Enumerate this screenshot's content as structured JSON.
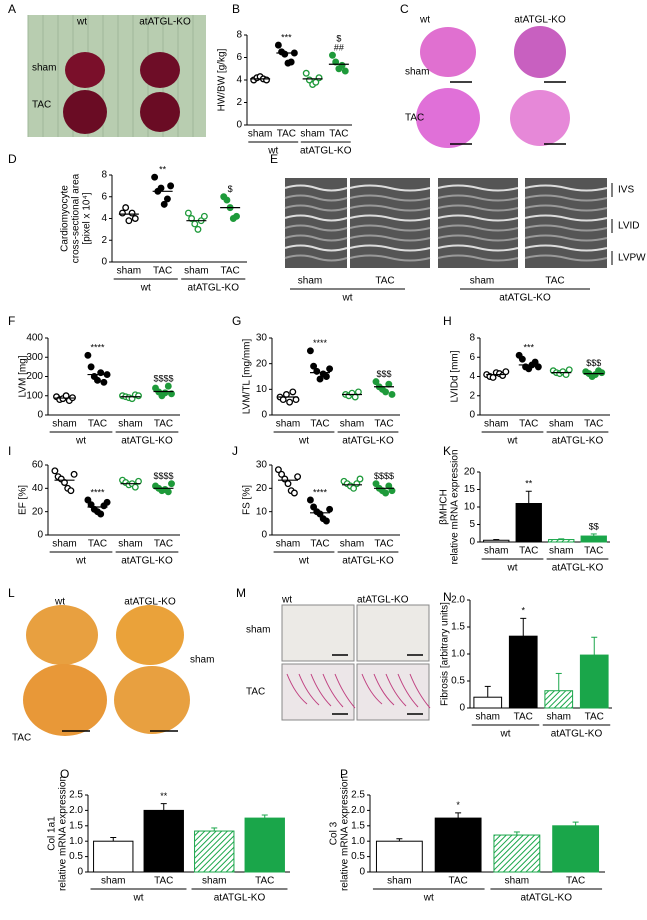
{
  "chart_data": [
    {
      "type": "dot",
      "panel": "B",
      "ylabel": "HW/BW [g/kg]",
      "categories": [
        "sham",
        "TAC",
        "sham",
        "TAC"
      ],
      "group_labels": [
        "wt",
        "atATGL-KO"
      ],
      "ylim": [
        0,
        8
      ],
      "yticks": [
        0,
        2,
        4,
        6,
        8
      ],
      "colors": [
        "#000000",
        "#000000",
        "#1e9a3a",
        "#1e9a3a"
      ],
      "filled": [
        false,
        true,
        false,
        true
      ],
      "points": [
        [
          4.0,
          4.2,
          4.3,
          4.1,
          4.0
        ],
        [
          7.1,
          6.5,
          6.3,
          5.5,
          5.6,
          6.4
        ],
        [
          4.6,
          4.0,
          3.6,
          3.8,
          4.2
        ],
        [
          6.2,
          5.6,
          5.0,
          5.3,
          4.8
        ]
      ],
      "means": [
        4.1,
        6.4,
        4.1,
        5.4
      ],
      "annotations": [
        null,
        [
          "***"
        ],
        null,
        [
          "$",
          "##"
        ]
      ]
    },
    {
      "type": "dot",
      "panel": "D",
      "ylabel": [
        "Cardiomyocyte",
        "cross-sectional area",
        "[pixel x 10⁴]"
      ],
      "categories": [
        "sham",
        "TAC",
        "sham",
        "TAC"
      ],
      "group_labels": [
        "wt",
        "atATGL-KO"
      ],
      "ylim": [
        0,
        8
      ],
      "yticks": [
        0,
        2,
        4,
        6,
        8
      ],
      "colors": [
        "#000000",
        "#000000",
        "#1e9a3a",
        "#1e9a3a"
      ],
      "filled": [
        false,
        true,
        false,
        true
      ],
      "points": [
        [
          4.5,
          5.0,
          3.8,
          4.5,
          4.0
        ],
        [
          7.8,
          6.5,
          6.8,
          5.3,
          5.8,
          7.0
        ],
        [
          4.5,
          4.0,
          3.5,
          3.0,
          3.8,
          4.2
        ],
        [
          6.0,
          5.7,
          5.0,
          4.0,
          4.2
        ]
      ],
      "means": [
        4.4,
        6.5,
        3.8,
        5.0
      ],
      "annotations": [
        null,
        [
          "**"
        ],
        null,
        [
          "$"
        ]
      ]
    },
    {
      "type": "dot",
      "panel": "F",
      "ylabel": "LVM [mg]",
      "categories": [
        "sham",
        "TAC",
        "sham",
        "TAC"
      ],
      "group_labels": [
        "wt",
        "atATGL-KO"
      ],
      "ylim": [
        0,
        400
      ],
      "yticks": [
        0,
        100,
        200,
        300,
        400
      ],
      "colors": [
        "#000000",
        "#000000",
        "#1e9a3a",
        "#1e9a3a"
      ],
      "filled": [
        false,
        true,
        false,
        true
      ],
      "points": [
        [
          95,
          80,
          85,
          100,
          75,
          90
        ],
        [
          310,
          250,
          200,
          180,
          220,
          170,
          210
        ],
        [
          100,
          95,
          90,
          85,
          105,
          100
        ],
        [
          140,
          120,
          100,
          115,
          150,
          110
        ]
      ],
      "means": [
        88,
        210,
        95,
        122
      ],
      "annotations": [
        null,
        [
          "****"
        ],
        null,
        [
          "$$$$"
        ]
      ]
    },
    {
      "type": "dot",
      "panel": "G",
      "ylabel": "LVM/TL [mg/mm]",
      "categories": [
        "sham",
        "TAC",
        "sham",
        "TAC"
      ],
      "group_labels": [
        "wt",
        "atATGL-KO"
      ],
      "ylim": [
        0,
        30
      ],
      "yticks": [
        0,
        10,
        20,
        30
      ],
      "colors": [
        "#000000",
        "#000000",
        "#1e9a3a",
        "#1e9a3a"
      ],
      "filled": [
        false,
        true,
        false,
        true
      ],
      "points": [
        [
          7,
          6,
          8,
          5,
          9,
          6
        ],
        [
          25,
          19,
          17,
          14,
          16,
          15,
          18
        ],
        [
          8,
          7.5,
          8.5,
          7,
          9
        ],
        [
          13,
          11,
          10,
          9,
          12,
          8
        ]
      ],
      "means": [
        7,
        16.5,
        8,
        11
      ],
      "annotations": [
        null,
        [
          "****"
        ],
        null,
        [
          "$$$"
        ]
      ]
    },
    {
      "type": "dot",
      "panel": "H",
      "ylabel": "LVIDd [mm]",
      "categories": [
        "sham",
        "TAC",
        "sham",
        "TAC"
      ],
      "group_labels": [
        "wt",
        "atATGL-KO"
      ],
      "ylim": [
        0,
        8
      ],
      "yticks": [
        0,
        2,
        4,
        6,
        8
      ],
      "colors": [
        "#000000",
        "#000000",
        "#1e9a3a",
        "#1e9a3a"
      ],
      "filled": [
        false,
        true,
        false,
        true
      ],
      "points": [
        [
          4.2,
          4.0,
          3.9,
          4.4,
          4.3,
          4.1,
          4.5
        ],
        [
          6.2,
          5.8,
          5.0,
          4.8,
          5.2,
          5.5,
          5.0
        ],
        [
          4.6,
          4.4,
          4.3,
          4.5,
          4.2,
          4.7
        ],
        [
          4.5,
          4.3,
          4.0,
          4.2,
          4.6,
          4.4
        ]
      ],
      "means": [
        4.2,
        5.2,
        4.4,
        4.3
      ],
      "annotations": [
        null,
        [
          "***"
        ],
        null,
        [
          "$$$"
        ]
      ]
    },
    {
      "type": "dot",
      "panel": "I",
      "ylabel": "EF [%]",
      "categories": [
        "sham",
        "TAC",
        "sham",
        "TAC"
      ],
      "group_labels": [
        "wt",
        "atATGL-KO"
      ],
      "ylim": [
        0,
        60
      ],
      "yticks": [
        0,
        20,
        40,
        60
      ],
      "colors": [
        "#000000",
        "#000000",
        "#1e9a3a",
        "#1e9a3a"
      ],
      "filled": [
        false,
        true,
        false,
        true
      ],
      "points": [
        [
          55,
          50,
          48,
          45,
          40,
          38,
          52
        ],
        [
          30,
          26,
          22,
          20,
          18,
          25,
          28
        ],
        [
          47,
          45,
          43,
          44,
          41,
          46
        ],
        [
          42,
          40,
          38,
          39,
          37,
          44
        ]
      ],
      "means": [
        47,
        24,
        44,
        40
      ],
      "annotations": [
        null,
        [
          "****"
        ],
        null,
        [
          "$$$$"
        ]
      ]
    },
    {
      "type": "dot",
      "panel": "J",
      "ylabel": "FS [%]",
      "categories": [
        "sham",
        "TAC",
        "sham",
        "TAC"
      ],
      "group_labels": [
        "wt",
        "atATGL-KO"
      ],
      "ylim": [
        0,
        30
      ],
      "yticks": [
        0,
        10,
        20,
        30
      ],
      "colors": [
        "#000000",
        "#000000",
        "#1e9a3a",
        "#1e9a3a"
      ],
      "filled": [
        false,
        true,
        false,
        true
      ],
      "points": [
        [
          28,
          26,
          24,
          22,
          19,
          18,
          25
        ],
        [
          15,
          12,
          10,
          9,
          7,
          6,
          11
        ],
        [
          23,
          22,
          21,
          20,
          22,
          24
        ],
        [
          22,
          20,
          19,
          18,
          21,
          19
        ]
      ],
      "means": [
        23.5,
        9.5,
        21.5,
        20
      ],
      "annotations": [
        null,
        [
          "****"
        ],
        null,
        [
          "$$$$"
        ]
      ]
    },
    {
      "type": "bar",
      "panel": "K",
      "ylabel": [
        "βMHCH",
        "relative mRNA expression"
      ],
      "categories": [
        "sham",
        "TAC",
        "sham",
        "TAC"
      ],
      "group_labels": [
        "wt",
        "atATGL-KO"
      ],
      "ylim": [
        0,
        20
      ],
      "yticks": [
        0,
        5,
        10,
        15,
        20
      ],
      "colors": [
        "#ffffff",
        "#000000",
        "#1aa64a",
        "#1aa64a"
      ],
      "hatched": [
        false,
        false,
        true,
        false
      ],
      "values": [
        0.5,
        11,
        0.7,
        1.7
      ],
      "errors": [
        0.2,
        3.5,
        0.2,
        0.6
      ],
      "annotations": [
        null,
        [
          "**"
        ],
        null,
        [
          "$$"
        ]
      ]
    },
    {
      "type": "bar",
      "panel": "N",
      "ylabel": "Fibrosis [arbitrary units]",
      "categories": [
        "sham",
        "TAC",
        "sham",
        "TAC"
      ],
      "group_labels": [
        "wt",
        "atATGL-KO"
      ],
      "ylim": [
        0,
        2
      ],
      "yticks": [
        0,
        0.5,
        {
          "value": 1,
          "label": "1.0"
        },
        1.5,
        {
          "value": 2,
          "label": "2.0"
        }
      ],
      "colors": [
        "#ffffff",
        "#000000",
        "#1aa64a",
        "#1aa64a"
      ],
      "hatched": [
        false,
        false,
        true,
        false
      ],
      "values": [
        0.2,
        1.33,
        0.32,
        0.98
      ],
      "errors": [
        0.2,
        0.33,
        0.32,
        0.33
      ],
      "annotations": [
        null,
        [
          "*"
        ],
        null,
        null
      ]
    },
    {
      "type": "bar",
      "panel": "O",
      "ylabel": [
        "Col 1a1",
        "relative mRNA expression"
      ],
      "categories": [
        "sham",
        "TAC",
        "sham",
        "TAC"
      ],
      "group_labels": [
        "wt",
        "atATGL-KO"
      ],
      "ylim": [
        0,
        2.5
      ],
      "yticks": [
        0,
        0.5,
        {
          "value": 1,
          "label": "1.0"
        },
        1.5,
        {
          "value": 2,
          "label": "2.0"
        },
        2.5
      ],
      "colors": [
        "#ffffff",
        "#000000",
        "#1aa64a",
        "#1aa64a"
      ],
      "hatched": [
        false,
        false,
        true,
        false
      ],
      "values": [
        1.0,
        2.0,
        1.33,
        1.75
      ],
      "errors": [
        0.12,
        0.22,
        0.1,
        0.1
      ],
      "annotations": [
        null,
        [
          "**"
        ],
        null,
        null
      ]
    },
    {
      "type": "bar",
      "panel": "P",
      "ylabel": [
        "Col 3",
        "relative mRNA expression"
      ],
      "categories": [
        "sham",
        "TAC",
        "sham",
        "TAC"
      ],
      "group_labels": [
        "wt",
        "atATGL-KO"
      ],
      "ylim": [
        0,
        2.5
      ],
      "yticks": [
        0,
        0.5,
        {
          "value": 1,
          "label": "1.0"
        },
        1.5,
        {
          "value": 2,
          "label": "2.0"
        },
        2.5
      ],
      "colors": [
        "#ffffff",
        "#000000",
        "#1aa64a",
        "#1aa64a"
      ],
      "hatched": [
        false,
        false,
        true,
        false
      ],
      "values": [
        1.0,
        1.75,
        1.2,
        1.5
      ],
      "errors": [
        0.08,
        0.17,
        0.1,
        0.12
      ],
      "annotations": [
        null,
        [
          "*"
        ],
        null,
        null
      ]
    }
  ],
  "image_panels": [
    {
      "panel": "A",
      "col_labels": [
        "wt",
        "atATGL-KO"
      ],
      "row_labels": [
        "sham",
        "TAC"
      ]
    },
    {
      "panel": "C",
      "col_labels": [
        "wt",
        "atATGL-KO"
      ],
      "row_labels": [
        "sham",
        "TAC"
      ]
    },
    {
      "panel": "E",
      "side_labels": [
        "IVS",
        "LVID",
        "LVPW"
      ],
      "groups": [
        {
          "categories": [
            "sham",
            "TAC"
          ],
          "label": "wt"
        },
        {
          "categories": [
            "sham",
            "TAC"
          ],
          "label": "atATGL-KO"
        }
      ]
    },
    {
      "panel": "L",
      "col_labels": [
        "wt",
        "atATGL-KO"
      ],
      "row_labels": [
        "sham",
        "TAC"
      ]
    },
    {
      "panel": "M",
      "col_labels": [
        "wt",
        "atATGL-KO"
      ],
      "row_labels": [
        "sham",
        "TAC"
      ]
    }
  ]
}
